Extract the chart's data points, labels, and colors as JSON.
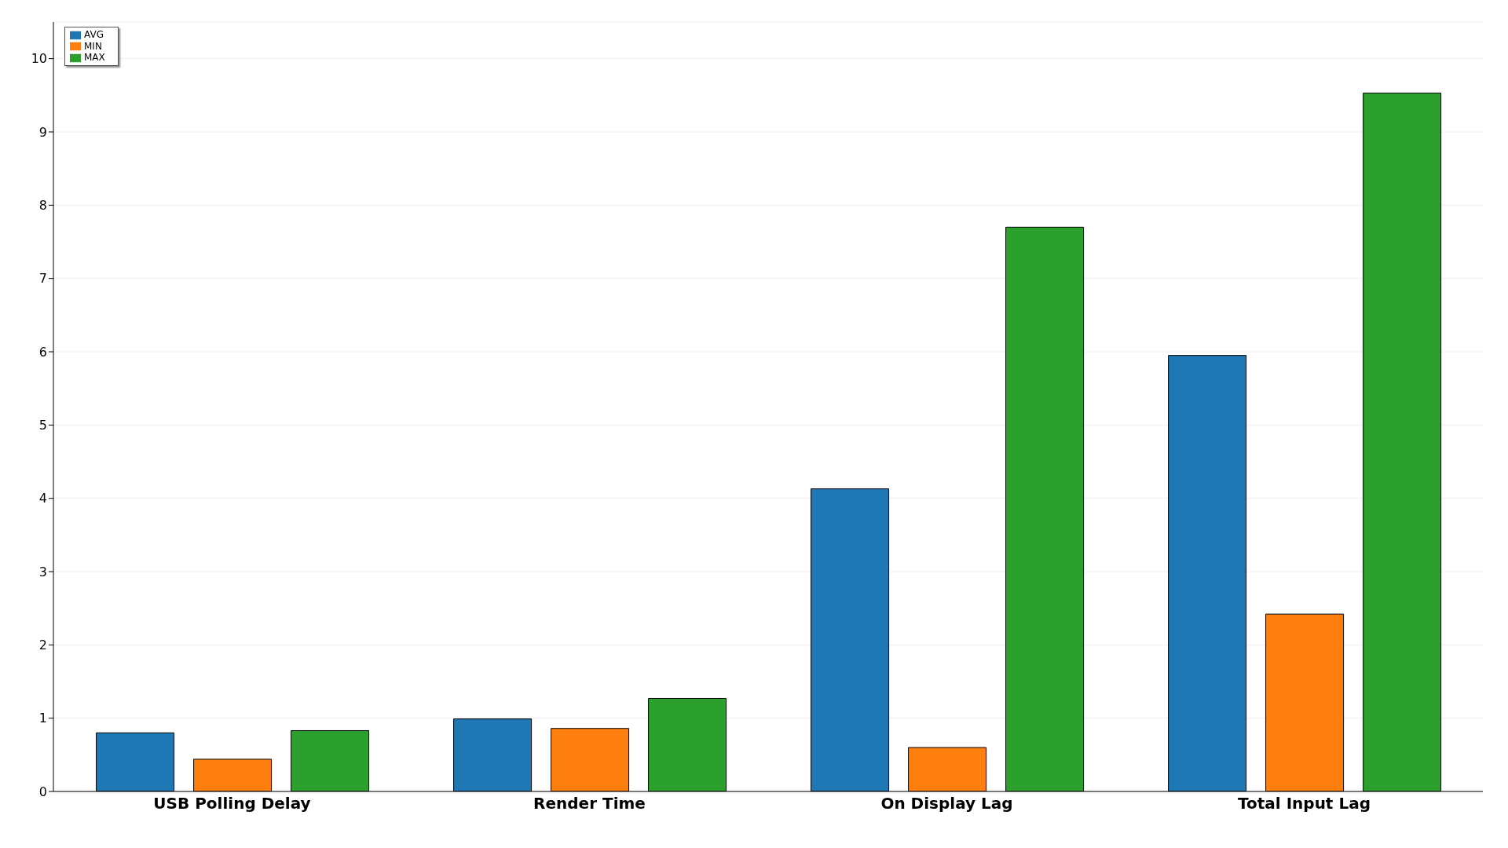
{
  "chart_data": {
    "type": "bar",
    "categories": [
      "USB Polling Delay",
      "Render Time",
      "On Display Lag",
      "Total Input Lag"
    ],
    "series": [
      {
        "name": "AVG",
        "color": "#1f77b4",
        "values": [
          0.8,
          0.99,
          4.13,
          5.95
        ]
      },
      {
        "name": "MIN",
        "color": "#ff7f0e",
        "values": [
          0.44,
          0.86,
          0.6,
          2.42
        ]
      },
      {
        "name": "MAX",
        "color": "#2ca02c",
        "values": [
          0.83,
          1.27,
          7.7,
          9.53
        ]
      }
    ],
    "ylim": [
      0,
      10.5
    ],
    "yticks": [
      0,
      1,
      2,
      3,
      4,
      5,
      6,
      7,
      8,
      9,
      10
    ],
    "grid": "y",
    "legend": "top left"
  }
}
